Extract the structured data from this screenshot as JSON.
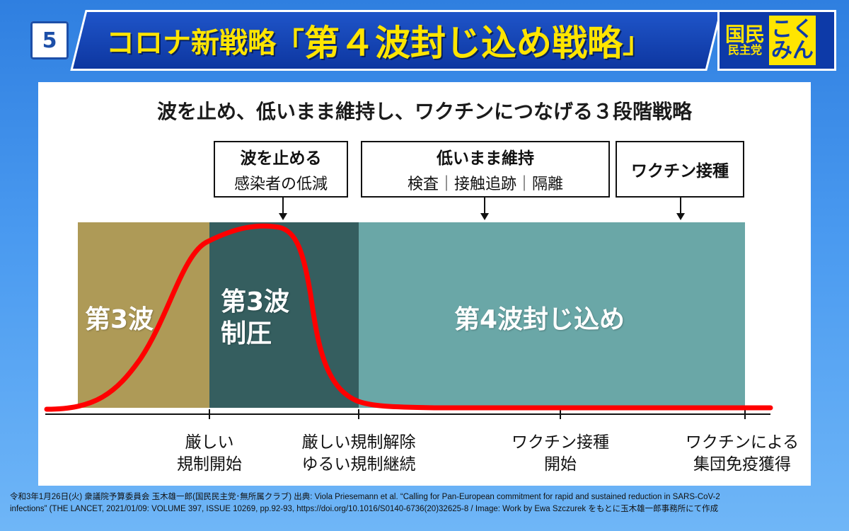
{
  "page_number": "5",
  "title": {
    "prefix": "コロナ新戦略「",
    "main": "第４波封じ込め戦略",
    "suffix": "」"
  },
  "logo": {
    "left_line1": "国民",
    "left_line2": "民主党",
    "right_line1": "こく",
    "right_line2": "みん"
  },
  "subtitle": "波を止め、低いまま維持し、ワクチンにつなげる３段階戦略",
  "strategy_boxes": [
    {
      "heading": "波を止める",
      "sub": "感染者の低減"
    },
    {
      "heading": "低いまま維持",
      "sub": "検査｜接触追跡｜隔離"
    },
    {
      "heading": "ワクチン接種",
      "sub": ""
    }
  ],
  "phases": [
    {
      "label_line1": "第3波",
      "label_line2": "",
      "color": "#ae9a57"
    },
    {
      "label_line1": "第3波",
      "label_line2": "制圧",
      "color": "#355e5f"
    },
    {
      "label_line1": "第4波封じ込め",
      "label_line2": "",
      "color": "#6aa7a7"
    }
  ],
  "curve_color": "#ff0000",
  "axis_labels": [
    {
      "line1": "厳しい",
      "line2": "規制開始"
    },
    {
      "line1": "厳しい規制解除",
      "line2": "ゆるい規制継続"
    },
    {
      "line1": "ワクチン接種",
      "line2": "開始"
    },
    {
      "line1": "ワクチンによる",
      "line2": "集団免疫獲得"
    }
  ],
  "footer": {
    "line1": "令和3年1月26日(火) 衆議院予算委員会 玉木雄一郎(国民民主党･無所属クラブ) 出典: Viola Priesemann et al. “Calling for Pan-European commitment for rapid and sustained reduction in SARS-CoV-2",
    "line2": "infections” (THE LANCET, 2021/01/09: VOLUME 397, ISSUE 10269, pp.92-93, https://doi.org/10.1016/S0140-6736(20)32625-8 / Image: Work by Ewa Szczurek をもとに玉木雄一郎事務所にて作成"
  }
}
